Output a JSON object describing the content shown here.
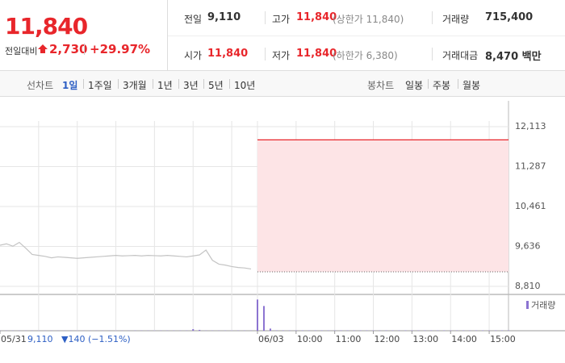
{
  "header": {
    "price": "11,840",
    "change_label": "전일대비",
    "change": "2,730",
    "change_pct": "+29.97%",
    "stats": [
      {
        "label": "전일",
        "value": "9,110"
      },
      {
        "label": "고가",
        "value": "11,840",
        "note": "(상한가 11,840)"
      },
      {
        "label": "거래량",
        "value": "715,400"
      },
      {
        "label": "시가",
        "value": "11,840"
      },
      {
        "label": "저가",
        "value": "11,840",
        "note": "(하한가 6,380)"
      },
      {
        "label": "거래대금",
        "value": "8,470 백만"
      }
    ]
  },
  "tabs": {
    "line_label": "선차트",
    "line_tabs": [
      "1일",
      "1주일",
      "3개월",
      "1년",
      "3년",
      "5년",
      "10년"
    ],
    "selected": 0,
    "candle_label": "봉차트",
    "candle_tabs": [
      "일봉",
      "주봉",
      "월봉"
    ]
  },
  "chart_data": {
    "type": "line",
    "categories": [
      "05/31",
      null,
      null,
      null,
      null,
      null,
      null,
      null,
      null,
      null,
      null,
      null,
      null,
      null,
      null,
      null,
      null,
      null,
      null,
      null,
      null,
      null,
      null,
      null,
      null,
      null,
      null,
      null,
      null,
      null,
      null,
      null,
      null,
      null,
      null,
      null,
      null,
      null,
      null,
      null,
      "06/03",
      null,
      null,
      null,
      null,
      null,
      "10:00",
      null,
      null,
      null,
      null,
      null,
      "11:00",
      null,
      null,
      null,
      null,
      null,
      "12:00",
      null,
      null,
      null,
      null,
      null,
      "13:00",
      null,
      null,
      null,
      null,
      null,
      "14:00",
      null,
      null,
      null,
      null,
      null,
      "15:00",
      null,
      null,
      null
    ],
    "series": [
      {
        "type": "line",
        "color": "#c4c4c4",
        "values": [
          9660,
          9690,
          9640,
          9720,
          9600,
          9470,
          9450,
          9430,
          9400,
          9420,
          9410,
          9400,
          9390,
          9400,
          9410,
          9420,
          9430,
          9440,
          9450,
          9440,
          9445,
          9450,
          9440,
          9450,
          9445,
          9440,
          9450,
          9440,
          9430,
          9420,
          9440,
          9460,
          9560,
          9350,
          9270,
          9250,
          9220,
          9200,
          9190,
          9170,
          null,
          null,
          null,
          null,
          null,
          null,
          null,
          null,
          null,
          null,
          null,
          null,
          null,
          null,
          null,
          null,
          null,
          null,
          null,
          null,
          null,
          null,
          null,
          null,
          null,
          null,
          null,
          null,
          null,
          null,
          null,
          null,
          null,
          null,
          null,
          null,
          null,
          null,
          null,
          null
        ]
      },
      {
        "type": "line",
        "color": "#e8262b",
        "fill": "#fde4e6",
        "values": [
          null,
          null,
          null,
          null,
          null,
          null,
          null,
          null,
          null,
          null,
          null,
          null,
          null,
          null,
          null,
          null,
          null,
          null,
          null,
          null,
          null,
          null,
          null,
          null,
          null,
          null,
          null,
          null,
          null,
          null,
          null,
          null,
          null,
          null,
          null,
          null,
          null,
          null,
          null,
          null,
          11840,
          11840,
          11840,
          11840,
          11840,
          11840,
          11840,
          11840,
          11840,
          11840,
          11840,
          11840,
          11840,
          11840,
          11840,
          11840,
          11840,
          11840,
          11840,
          11840,
          11840,
          11840,
          11840,
          11840,
          11840,
          11840,
          11840,
          11840,
          11840,
          11840,
          11840,
          11840,
          11840,
          11840,
          11840,
          11840,
          11840,
          11840,
          11840,
          11840
        ]
      },
      {
        "type": "bar",
        "name": "거래량",
        "axis": "y2",
        "color": "#8b73d1",
        "values": [
          2000,
          2000,
          2000,
          2000,
          2000,
          2000,
          2000,
          2000,
          2000,
          2000,
          2000,
          2000,
          2000,
          2000,
          2000,
          2000,
          2000,
          2000,
          2000,
          2000,
          2000,
          2000,
          2000,
          2000,
          2000,
          2000,
          2000,
          2000,
          2000,
          2000,
          15000,
          8000,
          2000,
          2000,
          2000,
          2000,
          2000,
          2000,
          2000,
          2000,
          290000,
          230000,
          20000,
          3000,
          3000,
          3000,
          3000,
          3000,
          3000,
          3000,
          3000,
          3000,
          3000,
          3000,
          3000,
          3000,
          3000,
          3000,
          3000,
          3000,
          3000,
          3000,
          3000,
          3000,
          3000,
          3000,
          3000,
          3000,
          3000,
          3000,
          3000,
          3000,
          3000,
          3000,
          3000,
          3000,
          3000,
          3000,
          3000,
          3000
        ]
      }
    ],
    "ylim": [
      8643,
      12647
    ],
    "yticks": [
      {
        "value": 8810,
        "label": "8,810"
      },
      {
        "value": 9636,
        "label": "9,636"
      },
      {
        "value": 10461,
        "label": "10,461"
      },
      {
        "value": 11287,
        "label": "11,287"
      },
      {
        "value": 12113,
        "label": "12,113"
      }
    ],
    "y2lim": [
      0,
      300000
    ],
    "grid": true,
    "prev_close": 9110,
    "prev_close_color": "#666666",
    "prev_day_close_label": "9,110",
    "prev_day_change": "▼140 (−1.51%)"
  }
}
